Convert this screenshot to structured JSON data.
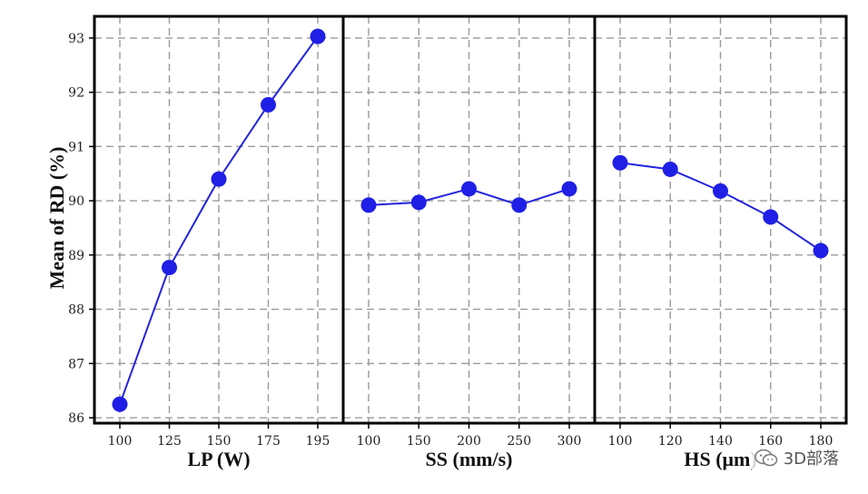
{
  "chart_data": {
    "type": "line",
    "ylabel": "Mean of RD (%)",
    "ylim": [
      85.9,
      93.4
    ],
    "yticks": [
      "86",
      "87",
      "88",
      "89",
      "90",
      "91",
      "92",
      "93"
    ],
    "grid": true,
    "line_color": "#2424dd",
    "marker_color": "#1f1fe6",
    "panels": [
      {
        "xlabel": "LP (W)",
        "categories": [
          "100",
          "125",
          "150",
          "175",
          "195"
        ],
        "values": [
          86.25,
          88.77,
          90.4,
          91.77,
          93.03
        ]
      },
      {
        "xlabel": "SS (mm/s)",
        "categories": [
          "100",
          "150",
          "200",
          "250",
          "300"
        ],
        "values": [
          89.92,
          89.97,
          90.22,
          89.92,
          90.22
        ]
      },
      {
        "xlabel": "HS (μm)",
        "categories": [
          "100",
          "120",
          "140",
          "160",
          "180"
        ],
        "values": [
          90.7,
          90.58,
          90.18,
          89.7,
          89.08
        ]
      }
    ]
  },
  "watermark": {
    "icon": "wechat-icon",
    "text": "3D部落"
  }
}
